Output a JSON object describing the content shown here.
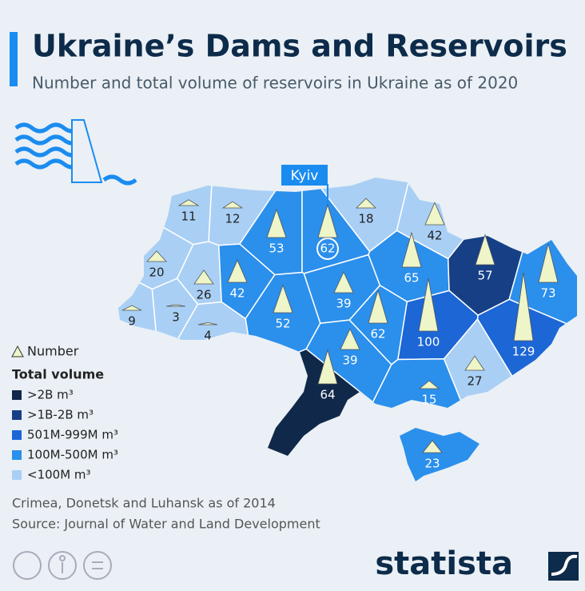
{
  "title": "Ukraine’s Dams and Reservoirs",
  "subtitle": "Number and total volume of reservoirs in Ukraine as of 2020",
  "capital_label": "Kyiv",
  "legend": {
    "number_label": "Number",
    "volume_title": "Total volume",
    "classes": [
      {
        "label": ">2B m³",
        "color": "#10284a"
      },
      {
        "label": ">1B-2B m³",
        "color": "#163f86"
      },
      {
        "label": "501M-999M m³",
        "color": "#1c66d6"
      },
      {
        "label": "100M-500M m³",
        "color": "#2b8fec"
      },
      {
        "label": "<100M m³",
        "color": "#a9cff5"
      }
    ]
  },
  "regions": [
    {
      "number": 11,
      "color": "#a9cff5"
    },
    {
      "number": 12,
      "color": "#a9cff5"
    },
    {
      "number": 53,
      "color": "#2b8fec"
    },
    {
      "number": 62,
      "color": "#2b8fec"
    },
    {
      "number": 18,
      "color": "#a9cff5"
    },
    {
      "number": 42,
      "color": "#a9cff5"
    },
    {
      "number": 20,
      "color": "#a9cff5"
    },
    {
      "number": 26,
      "color": "#a9cff5"
    },
    {
      "number": 42,
      "color": "#2b8fec"
    },
    {
      "number": 52,
      "color": "#2b8fec"
    },
    {
      "number": 39,
      "color": "#2b8fec"
    },
    {
      "number": 65,
      "color": "#2b8fec"
    },
    {
      "number": 57,
      "color": "#163f86"
    },
    {
      "number": 73,
      "color": "#2b8fec"
    },
    {
      "number": 129,
      "color": "#1c66d6"
    },
    {
      "number": 9,
      "color": "#a9cff5"
    },
    {
      "number": 3,
      "color": "#a9cff5"
    },
    {
      "number": 4,
      "color": "#a9cff5"
    },
    {
      "number": 62,
      "color": "#2b8fec"
    },
    {
      "number": 100,
      "color": "#1c66d6"
    },
    {
      "number": 39,
      "color": "#2b8fec"
    },
    {
      "number": 64,
      "color": "#10284a"
    },
    {
      "number": 27,
      "color": "#a9cff5"
    },
    {
      "number": 15,
      "color": "#2b8fec"
    },
    {
      "number": 23,
      "color": "#2b8fec"
    }
  ],
  "notes": [
    "Crimea, Donetsk and Luhansk as of 2014",
    "Source: Journal of Water and Land Development"
  ],
  "brand": "statista"
}
